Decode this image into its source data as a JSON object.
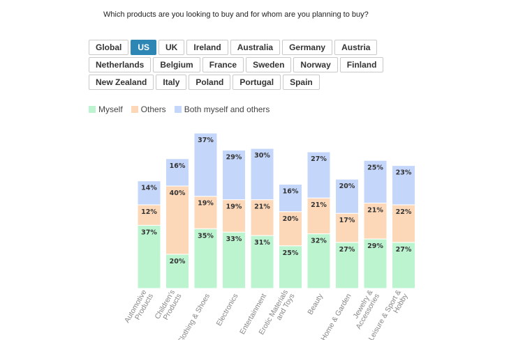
{
  "question": "Which products are you looking to buy and for whom are you planning to buy?",
  "tabs": {
    "rows": [
      [
        "Global",
        "US",
        "UK",
        "Ireland",
        "Australia",
        "Germany",
        "Austria"
      ],
      [
        "Netherlands",
        "Belgium",
        "France",
        "Sweden",
        "Norway",
        "Finland"
      ],
      [
        "New Zealand",
        "Italy",
        "Poland",
        "Portugal",
        "Spain"
      ]
    ],
    "active": "US"
  },
  "legend": [
    {
      "label": "Myself",
      "color": "#bcf4d0"
    },
    {
      "label": "Others",
      "color": "#fcd8b8"
    },
    {
      "label": "Both myself and others",
      "color": "#c4d6fa"
    }
  ],
  "chart_data": {
    "type": "bar",
    "stacked": true,
    "categories": [
      [
        "Automotive",
        "Products"
      ],
      [
        "Children's",
        "Products"
      ],
      [
        "Clothing & Shoes"
      ],
      [
        "Electronics"
      ],
      [
        "Entertainment"
      ],
      [
        "Erotic Materials",
        "and Toys"
      ],
      [
        "Beauty"
      ],
      [
        "Home & Garden"
      ],
      [
        "Jewelry &",
        "Accessories"
      ],
      [
        "Leisure & Sport &",
        "Hobby"
      ]
    ],
    "series": [
      {
        "name": "Myself",
        "color": "#bcf4d0",
        "values": [
          37,
          20,
          35,
          33,
          31,
          25,
          32,
          27,
          29,
          27
        ]
      },
      {
        "name": "Others",
        "color": "#fcd8b8",
        "values": [
          12,
          40,
          19,
          19,
          21,
          20,
          21,
          17,
          21,
          22
        ]
      },
      {
        "name": "Both myself and others",
        "color": "#c4d6fa",
        "values": [
          14,
          16,
          37,
          29,
          30,
          16,
          27,
          20,
          25,
          23
        ]
      }
    ],
    "value_suffix": "%",
    "legend_position": "top-left",
    "grid": false
  }
}
